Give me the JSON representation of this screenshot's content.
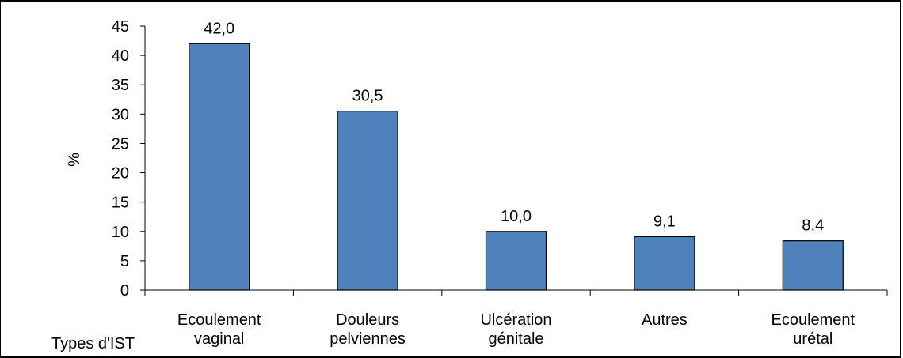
{
  "chart_data": {
    "type": "bar",
    "title": "",
    "xlabel": "Types d'IST",
    "ylabel": "%",
    "categories": [
      [
        "Ecoulement",
        "vaginal"
      ],
      [
        "Douleurs",
        "pelviennes"
      ],
      [
        "Ulcération",
        "génitale"
      ],
      [
        "Autres"
      ],
      [
        "Ecoulement",
        "urétal"
      ]
    ],
    "values": [
      42.0,
      30.5,
      10.0,
      9.1,
      8.4
    ],
    "data_labels": [
      "42,0",
      "30,5",
      "10,0",
      "9,1",
      "8,4"
    ],
    "ylim": [
      0,
      45
    ],
    "yticks": [
      0,
      5,
      10,
      15,
      20,
      25,
      30,
      35,
      40,
      45
    ],
    "grid": false,
    "legend": "none",
    "colors": {
      "bar_fill": "#4f81bd",
      "bar_stroke": "#000000",
      "axis": "#000000",
      "frame": "#000000"
    }
  }
}
